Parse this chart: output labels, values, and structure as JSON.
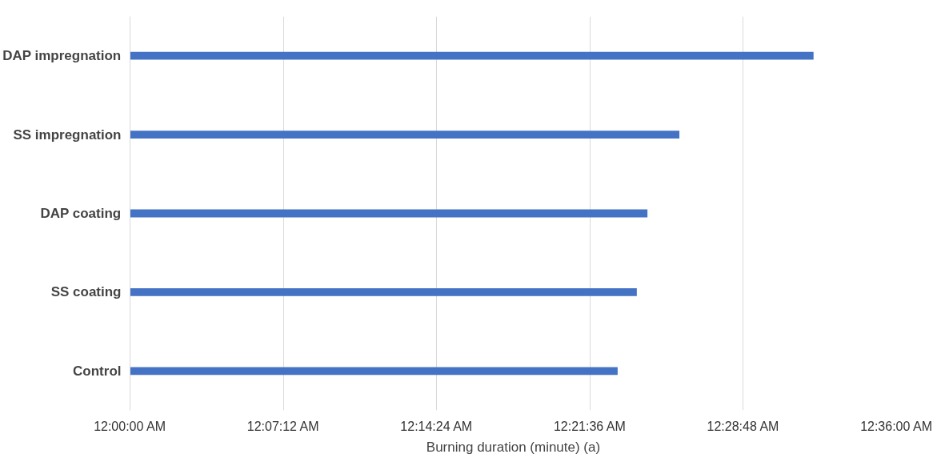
{
  "chart_data": {
    "type": "bar",
    "orientation": "horizontal",
    "xlabel": "Burning duration (minute) (a)",
    "categories": [
      "DAP impregnation",
      "SS impregnation",
      "DAP coating",
      "SS coating",
      "Control"
    ],
    "values": [
      32.1,
      25.8,
      24.3,
      23.8,
      22.9
    ],
    "color": "#4472c4",
    "xlim": [
      0,
      36
    ],
    "xticks": [
      {
        "value": 0,
        "label": "12:00:00 AM"
      },
      {
        "value": 7.2,
        "label": "12:07:12 AM"
      },
      {
        "value": 14.4,
        "label": "12:14:24 AM"
      },
      {
        "value": 21.6,
        "label": "12:21:36 AM"
      },
      {
        "value": 28.8,
        "label": "12:28:48 AM"
      },
      {
        "value": 36,
        "label": "12:36:00 AM"
      }
    ],
    "grid": "x"
  }
}
